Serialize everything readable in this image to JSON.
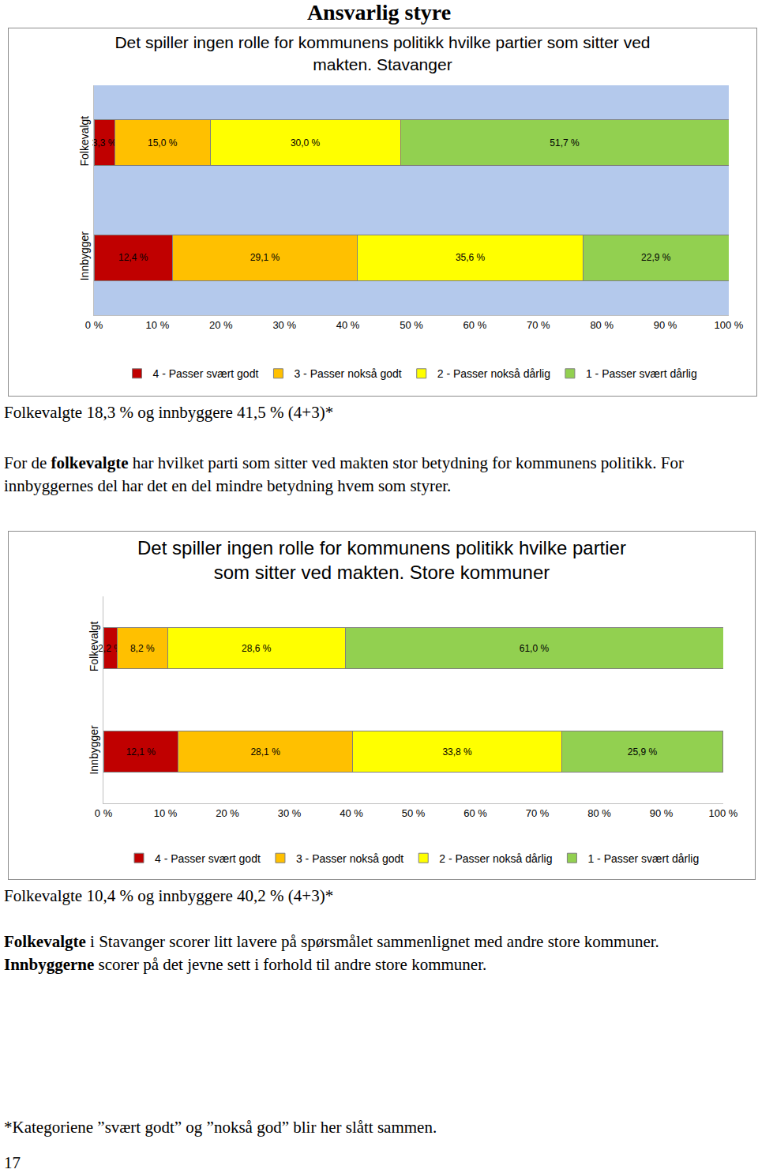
{
  "header": {
    "title": "Ansvarlig styre"
  },
  "chart_data": [
    {
      "type": "bar",
      "orientation": "horizontal",
      "stacked": true,
      "data_labels": true,
      "grid": false,
      "legend": "bottom",
      "title": "Det spiller ingen rolle for kommunens politikk hvilke partier som sitter ved makten. Stavanger",
      "categories": [
        "Folkevalgt",
        "Innbygger"
      ],
      "series": [
        {
          "name": "4 - Passer svært godt",
          "color": "#C00000",
          "values": [
            3.3,
            12.4
          ],
          "value_labels": [
            "3,3 %",
            "12,4 %"
          ]
        },
        {
          "name": "3 - Passer nokså godt",
          "color": "#FFC000",
          "values": [
            15.0,
            29.1
          ],
          "value_labels": [
            "15,0 %",
            "29,1 %"
          ]
        },
        {
          "name": "2 - Passer nokså dårlig",
          "color": "#FFFF00",
          "values": [
            30.0,
            35.6
          ],
          "value_labels": [
            "30,0 %",
            "35,6 %"
          ]
        },
        {
          "name": "1 - Passer svært dårlig",
          "color": "#92D050",
          "values": [
            51.7,
            22.9
          ],
          "value_labels": [
            "51,7 %",
            "22,9 %"
          ]
        }
      ],
      "xlim": [
        0,
        100
      ],
      "xticks": [
        {
          "value": 0,
          "label": "0 %"
        },
        {
          "value": 10,
          "label": "10 %"
        },
        {
          "value": 20,
          "label": "20 %"
        },
        {
          "value": 30,
          "label": "30 %"
        },
        {
          "value": 40,
          "label": "40 %"
        },
        {
          "value": 50,
          "label": "50 %"
        },
        {
          "value": 60,
          "label": "60 %"
        },
        {
          "value": 70,
          "label": "70 %"
        },
        {
          "value": 80,
          "label": "80 %"
        },
        {
          "value": 90,
          "label": "90 %"
        },
        {
          "value": 100,
          "label": "100 %"
        }
      ]
    },
    {
      "type": "bar",
      "orientation": "horizontal",
      "stacked": true,
      "data_labels": true,
      "grid": false,
      "legend": "bottom",
      "title": "Det spiller ingen rolle for kommunens politikk hvilke partier som sitter ved makten. Store kommuner",
      "categories": [
        "Folkevalgt",
        "Innbygger"
      ],
      "series": [
        {
          "name": "4 - Passer svært godt",
          "color": "#C00000",
          "values": [
            2.2,
            12.1
          ],
          "value_labels": [
            "2,2 %",
            "12,1 %"
          ]
        },
        {
          "name": "3 - Passer nokså godt",
          "color": "#FFC000",
          "values": [
            8.2,
            28.1
          ],
          "value_labels": [
            "8,2 %",
            "28,1 %"
          ]
        },
        {
          "name": "2 - Passer nokså dårlig",
          "color": "#FFFF00",
          "values": [
            28.6,
            33.8
          ],
          "value_labels": [
            "28,6 %",
            "33,8 %"
          ]
        },
        {
          "name": "1 - Passer svært dårlig",
          "color": "#92D050",
          "values": [
            61.0,
            25.9
          ],
          "value_labels": [
            "61,0 %",
            "25,9 %"
          ]
        }
      ],
      "xlim": [
        0,
        100
      ],
      "xticks": [
        {
          "value": 0,
          "label": "0 %"
        },
        {
          "value": 10,
          "label": "10 %"
        },
        {
          "value": 20,
          "label": "20 %"
        },
        {
          "value": 30,
          "label": "30 %"
        },
        {
          "value": 40,
          "label": "40 %"
        },
        {
          "value": 50,
          "label": "50 %"
        },
        {
          "value": 60,
          "label": "60 %"
        },
        {
          "value": 70,
          "label": "70 %"
        },
        {
          "value": 80,
          "label": "80 %"
        },
        {
          "value": 90,
          "label": "90 %"
        },
        {
          "value": 100,
          "label": "100 %"
        }
      ]
    }
  ],
  "texts": [
    {
      "summary": "Folkevalgte 18,3 % og innbyggere 41,5 % (4+3)*",
      "paragraph": [
        {
          "text": "For de "
        },
        {
          "text": "folkevalgte",
          "bold": true
        },
        {
          "text": " har hvilket parti som sitter ved makten stor betydning for kommunens politikk. For innbyggernes del har det en del mindre betydning hvem som styrer."
        }
      ]
    },
    {
      "summary": "Folkevalgte 10,4 % og innbyggere 40,2 % (4+3)*",
      "paragraph": [
        {
          "text": "Folkevalgte",
          "bold": true
        },
        {
          "text": " i Stavanger scorer litt lavere på spørsmålet sammenlignet med andre store kommuner. "
        },
        {
          "text": "Innbyggerne",
          "bold": true
        },
        {
          "text": " scorer på det jevne sett i forhold til andre store kommuner."
        }
      ]
    }
  ],
  "footnote": "*Kategoriene ”svært godt” og ”nokså god” blir her slått sammen.",
  "page_number": "17"
}
